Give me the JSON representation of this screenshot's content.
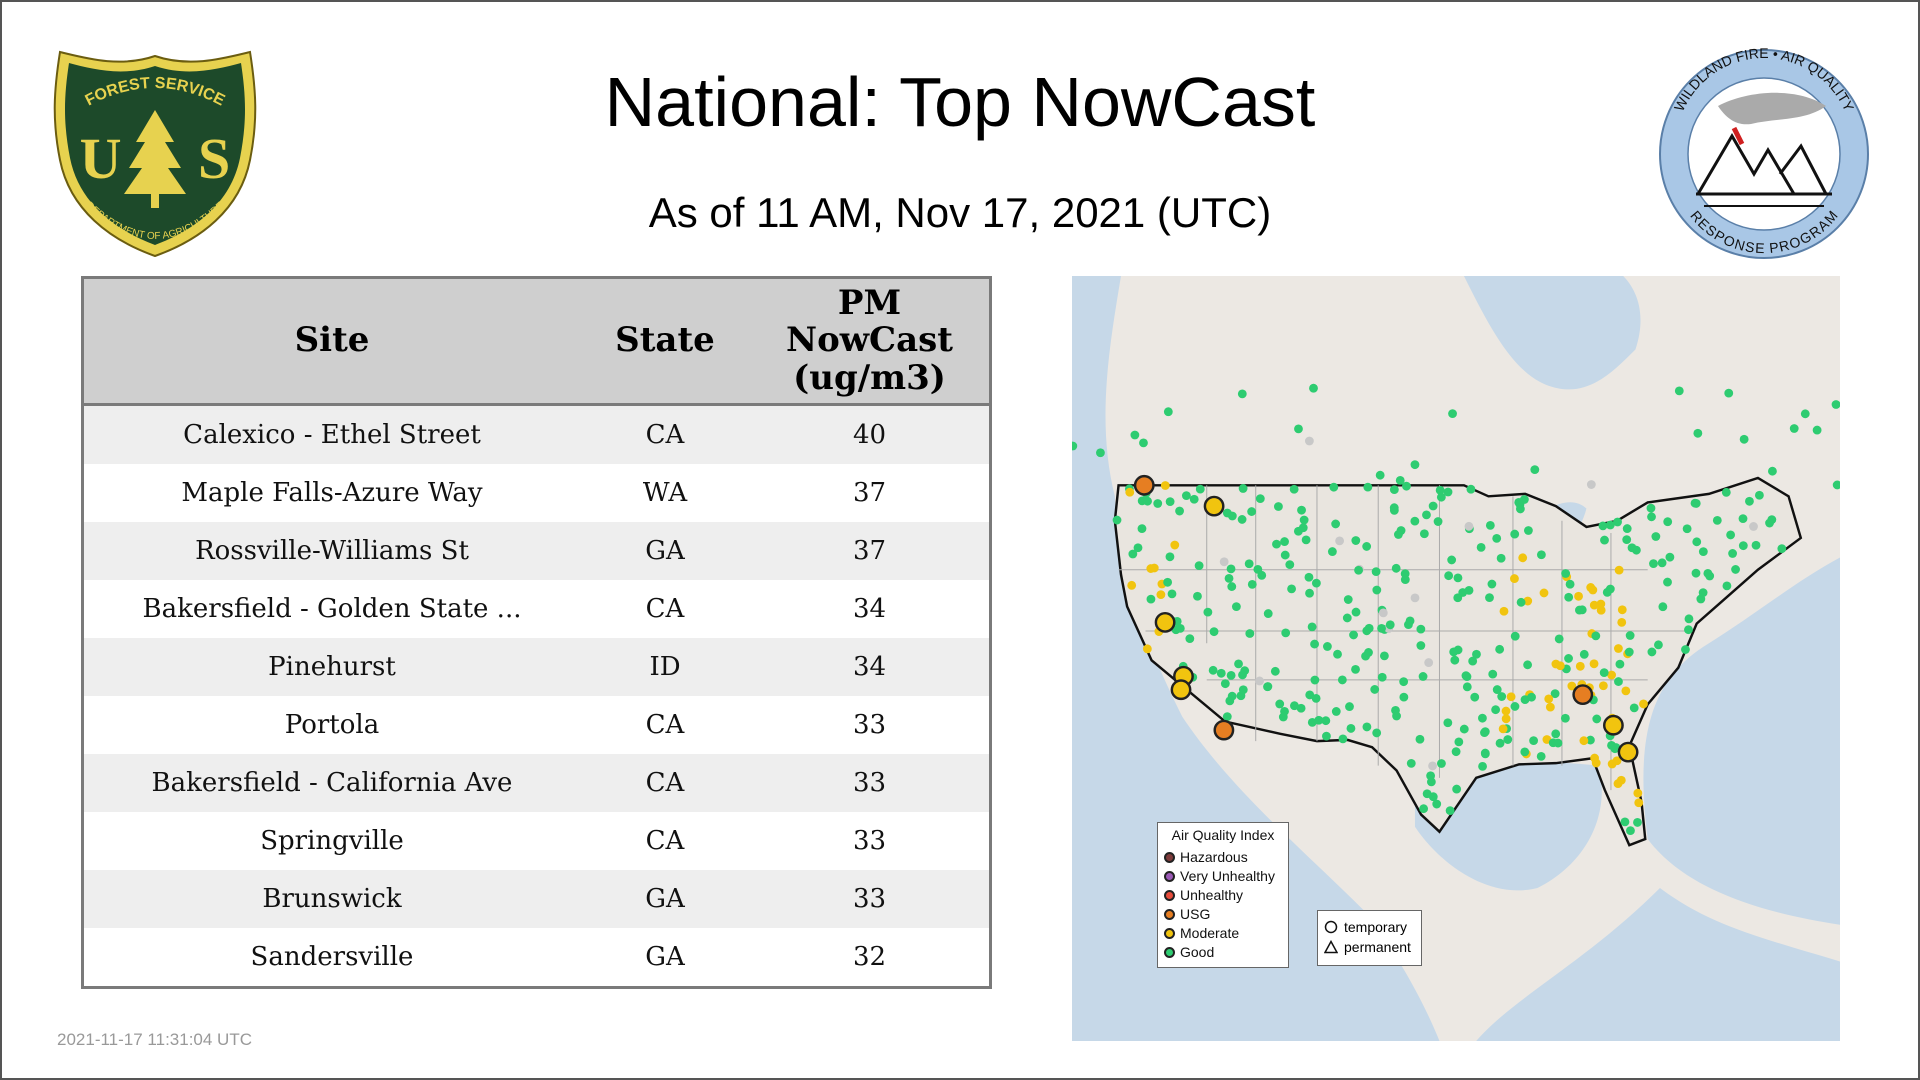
{
  "header": {
    "title": "National: Top NowCast",
    "subtitle": "As of 11 AM, Nov 17, 2021 (UTC)"
  },
  "logos": {
    "left": {
      "top_text": "FOREST SERVICE",
      "letters": "U S",
      "bottom_text": "DEPARTMENT OF AGRICULTURE"
    },
    "right": {
      "top_text": "WILDLAND FIRE • AIR QUALITY",
      "bottom_text": "RESPONSE PROGRAM"
    }
  },
  "table": {
    "headers": [
      "Site",
      "State",
      "PM NowCast (ug/m3)"
    ],
    "header_lines": [
      "PM",
      "NowCast",
      "(ug/m3)"
    ],
    "rows": [
      {
        "site": "Calexico - Ethel Street",
        "state": "CA",
        "value": "40"
      },
      {
        "site": "Maple Falls-Azure Way",
        "state": "WA",
        "value": "37"
      },
      {
        "site": "Rossville-Williams St",
        "state": "GA",
        "value": "37"
      },
      {
        "site": "Bakersfield - Golden State ...",
        "state": "CA",
        "value": "34"
      },
      {
        "site": "Pinehurst",
        "state": "ID",
        "value": "34"
      },
      {
        "site": "Portola",
        "state": "CA",
        "value": "33"
      },
      {
        "site": "Bakersfield - California Ave",
        "state": "CA",
        "value": "33"
      },
      {
        "site": "Springville",
        "state": "CA",
        "value": "33"
      },
      {
        "site": "Brunswick",
        "state": "GA",
        "value": "33"
      },
      {
        "site": "Sandersville",
        "state": "GA",
        "value": "32"
      }
    ]
  },
  "map": {
    "legend": {
      "title": "Air Quality Index",
      "items": [
        {
          "label": "Hazardous",
          "color": "#7e3b3b"
        },
        {
          "label": "Very Unhealthy",
          "color": "#9b59b6"
        },
        {
          "label": "Unhealthy",
          "color": "#e74c3c"
        },
        {
          "label": "USG",
          "color": "#e67e22"
        },
        {
          "label": "Moderate",
          "color": "#f1c40f"
        },
        {
          "label": "Good",
          "color": "#2ecc71"
        }
      ]
    },
    "monitor_legend": {
      "temporary": "temporary",
      "permanent": "permanent"
    },
    "colors": {
      "ocean": "#c6d8e8",
      "land": "#ece8e3",
      "good": "#2ecc71",
      "moderate": "#f1c40f",
      "usg": "#e67e22",
      "inactive": "#c8c8c8"
    }
  },
  "footer": {
    "timestamp": "2021-11-17 11:31:04 UTC"
  }
}
